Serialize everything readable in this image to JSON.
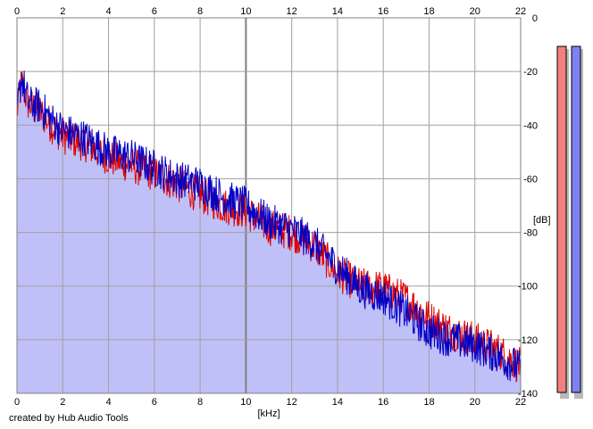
{
  "chart_data": {
    "type": "area",
    "xlabel": "[kHz]",
    "ylabel": "[dB]",
    "xlim": [
      0,
      22
    ],
    "ylim": [
      -140,
      0
    ],
    "x_ticks": [
      "0",
      "2",
      "4",
      "6",
      "8",
      "10",
      "12",
      "14",
      "16",
      "18",
      "20",
      "22"
    ],
    "y_ticks": [
      "0",
      "-20",
      "-40",
      "-60",
      "-80",
      "-100",
      "-120",
      "-140"
    ],
    "grid": true,
    "series": [
      {
        "color": "#e00000",
        "x": [
          0,
          0.2,
          0.5,
          1,
          1.5,
          2,
          3,
          4,
          5,
          6,
          7,
          8,
          9,
          10,
          11,
          12,
          13,
          14,
          15,
          16,
          17,
          18,
          19,
          20,
          21,
          22
        ],
        "y": [
          -35,
          -24,
          -32,
          -35,
          -40,
          -44,
          -47,
          -52,
          -55,
          -58,
          -62,
          -66,
          -70,
          -72,
          -78,
          -80,
          -85,
          -95,
          -100,
          -101,
          -105,
          -112,
          -117,
          -120,
          -124,
          -130
        ]
      },
      {
        "color": "#0000c8",
        "x": [
          0,
          0.2,
          0.5,
          1,
          1.5,
          2,
          3,
          4,
          5,
          6,
          7,
          8,
          9,
          10,
          11,
          12,
          13,
          14,
          15,
          16,
          17,
          18,
          19,
          20,
          21,
          22
        ],
        "y": [
          -35,
          -22,
          -32,
          -33,
          -38,
          -42,
          -45,
          -50,
          -52,
          -56,
          -60,
          -62,
          -67,
          -70,
          -76,
          -79,
          -84,
          -93,
          -101,
          -104,
          -110,
          -117,
          -120,
          -122,
          -126,
          -131
        ]
      }
    ],
    "fill_color": "#c0c0f8",
    "meters": [
      {
        "color": "#f08080",
        "level": 0.97
      },
      {
        "color": "#8080f0",
        "level": 0.97
      }
    ]
  },
  "footer": {
    "credit": "created by Hub Audio Tools"
  }
}
